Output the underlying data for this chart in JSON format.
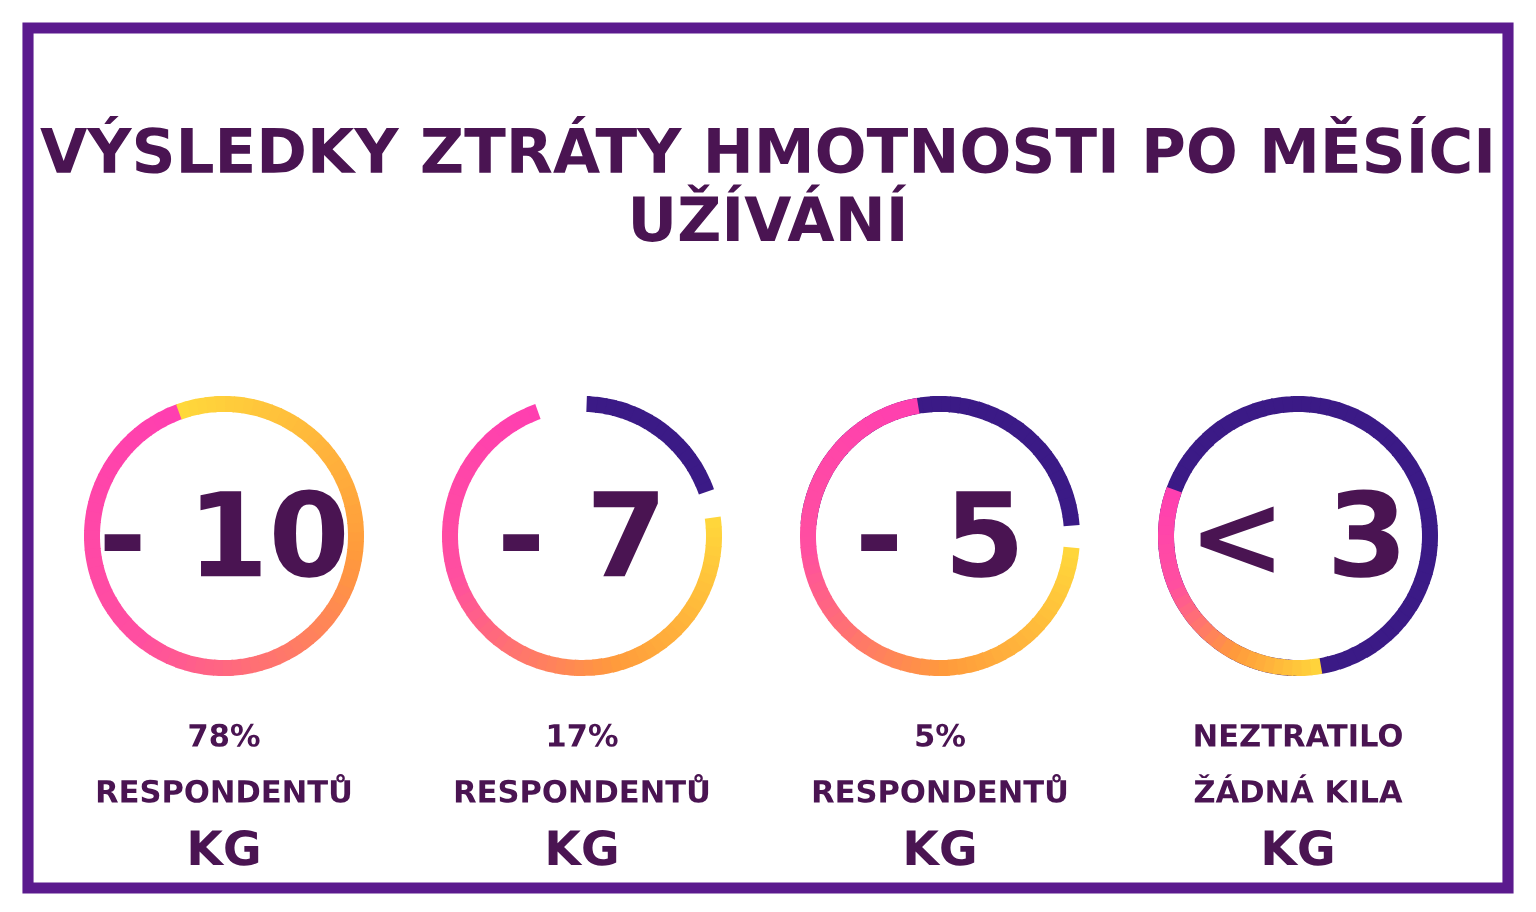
{
  "chart_data": {
    "type": "other",
    "title": "VÝSLEDKY ZTRÁTY HMOTNOSTI PO MĚSÍCI UŽÍVÁNÍ",
    "categories": [
      "- 10",
      "- 7",
      "- 5",
      "< 3"
    ],
    "values": [
      78,
      17,
      5,
      null
    ],
    "value_labels": [
      "78%",
      "17%",
      "5%",
      "NEZTRATILO"
    ],
    "annotations": [
      "RESPONDENTŮ",
      "RESPONDENTŮ",
      "RESPONDENTŮ",
      "ŽÁDNÁ KILA",
      "KG",
      "KG",
      "KG",
      "KG"
    ]
  }
}
